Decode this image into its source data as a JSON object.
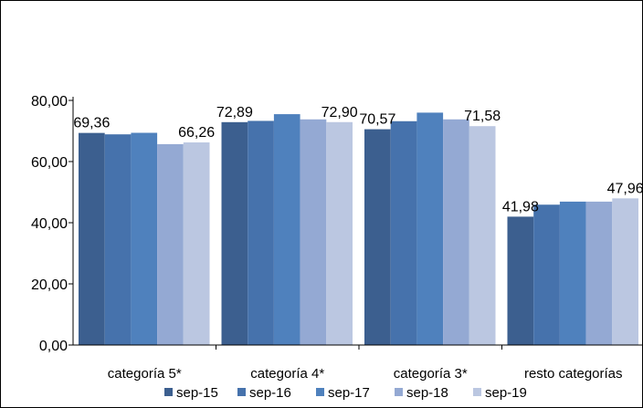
{
  "chart_data": {
    "type": "bar",
    "categories": [
      "categoría 5*",
      "categoría 4*",
      "categoría 3*",
      "resto categorías"
    ],
    "series": [
      {
        "name": "sep-15",
        "values": [
          69.36,
          72.89,
          70.57,
          41.98
        ],
        "color": "#3C5F8F"
      },
      {
        "name": "sep-16",
        "values": [
          68.9,
          73.3,
          73.2,
          45.9
        ],
        "color": "#4672AC"
      },
      {
        "name": "sep-17",
        "values": [
          69.4,
          75.5,
          76.0,
          46.9
        ],
        "color": "#4F81BD"
      },
      {
        "name": "sep-18",
        "values": [
          65.7,
          73.8,
          73.8,
          46.9
        ],
        "color": "#94A9D3"
      },
      {
        "name": "sep-19",
        "values": [
          66.26,
          72.9,
          71.58,
          47.96
        ],
        "color": "#BBC7E1"
      }
    ],
    "data_labels": [
      {
        "category": 0,
        "series": 0,
        "text": "69,36"
      },
      {
        "category": 0,
        "series": 4,
        "text": "66,26"
      },
      {
        "category": 1,
        "series": 0,
        "text": "72,89"
      },
      {
        "category": 1,
        "series": 4,
        "text": "72,90"
      },
      {
        "category": 2,
        "series": 0,
        "text": "70,57"
      },
      {
        "category": 2,
        "series": 4,
        "text": "71,58"
      },
      {
        "category": 3,
        "series": 0,
        "text": "41,98"
      },
      {
        "category": 3,
        "series": 4,
        "text": "47,96"
      }
    ],
    "y_ticks": [
      "0,00",
      "20,00",
      "40,00",
      "60,00",
      "80,00"
    ],
    "ylim": [
      0,
      80
    ],
    "legend_position": "bottom",
    "grid": false
  }
}
